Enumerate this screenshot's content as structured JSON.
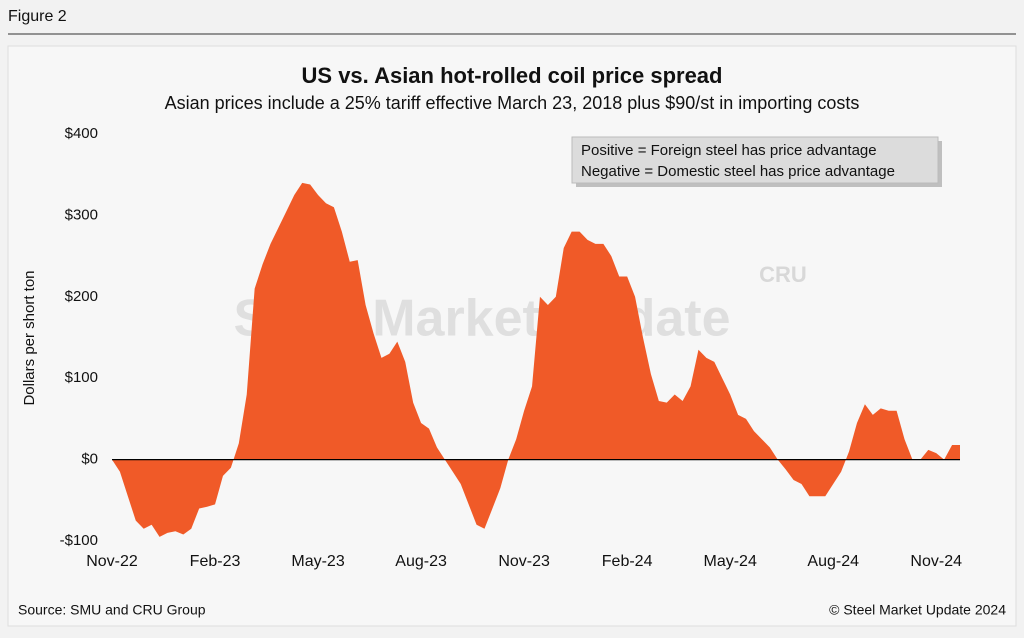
{
  "figure_label": "Figure 2",
  "source": "Source: SMU and CRU Group",
  "copyright": "© Steel Market Update 2024",
  "watermark": {
    "main": "Steel Market Update",
    "logo": "CRU"
  },
  "chart_data": {
    "type": "area",
    "title": "US vs. Asian hot-rolled coil price spread",
    "subtitle": "Asian prices include a 25% tariff effective March 23, 2018 plus $90/st in importing costs",
    "y_label": "Dollars per short ton",
    "annotations": [
      "Positive = Foreign steel has price advantage",
      "Negative = Domestic steel has price advantage"
    ],
    "color": "#f05a28",
    "categories": [
      "Nov-22",
      null,
      null,
      null,
      null,
      null,
      null,
      null,
      null,
      null,
      null,
      null,
      null,
      "Feb-23",
      null,
      null,
      null,
      null,
      null,
      null,
      null,
      null,
      null,
      null,
      null,
      null,
      "May-23",
      null,
      null,
      null,
      null,
      null,
      null,
      null,
      null,
      null,
      null,
      null,
      null,
      "Aug-23",
      null,
      null,
      null,
      null,
      null,
      null,
      null,
      null,
      null,
      null,
      null,
      null,
      "Nov-23",
      null,
      null,
      null,
      null,
      null,
      null,
      null,
      null,
      null,
      null,
      null,
      null,
      "Feb-24",
      null,
      null,
      null,
      null,
      null,
      null,
      null,
      null,
      null,
      null,
      null,
      null,
      "May-24",
      null,
      null,
      null,
      null,
      null,
      null,
      null,
      null,
      null,
      null,
      null,
      null,
      "Aug-24",
      null,
      null,
      null,
      null,
      null,
      null,
      null,
      null,
      null,
      null,
      null,
      null,
      "Nov-24",
      null,
      null,
      null
    ],
    "values": [
      0,
      -15,
      -45,
      -75,
      -85,
      -80,
      -95,
      -90,
      -88,
      -92,
      -85,
      -60,
      -58,
      -55,
      -20,
      -10,
      20,
      80,
      210,
      240,
      265,
      285,
      305,
      325,
      340,
      338,
      325,
      315,
      310,
      280,
      243,
      245,
      190,
      155,
      125,
      130,
      145,
      120,
      70,
      45,
      38,
      15,
      0,
      -15,
      -30,
      -55,
      -80,
      -85,
      -60,
      -35,
      0,
      25,
      60,
      90,
      200,
      190,
      200,
      260,
      280,
      280,
      270,
      265,
      265,
      250,
      225,
      225,
      200,
      150,
      105,
      72,
      70,
      80,
      72,
      90,
      135,
      125,
      120,
      100,
      80,
      55,
      50,
      35,
      25,
      15,
      0,
      -12,
      -25,
      -30,
      -45,
      -45,
      -45,
      -30,
      -15,
      10,
      45,
      68,
      55,
      63,
      60,
      60,
      25,
      0,
      0,
      12,
      8,
      0,
      18,
      18
    ],
    "ylim": [
      -100,
      400
    ],
    "yticks": [
      {
        "value": -100,
        "label": "-$100"
      },
      {
        "value": 0,
        "label": "$0"
      },
      {
        "value": 100,
        "label": "$100"
      },
      {
        "value": 200,
        "label": "$200"
      },
      {
        "value": 300,
        "label": "$300"
      },
      {
        "value": 400,
        "label": "$400"
      }
    ]
  }
}
